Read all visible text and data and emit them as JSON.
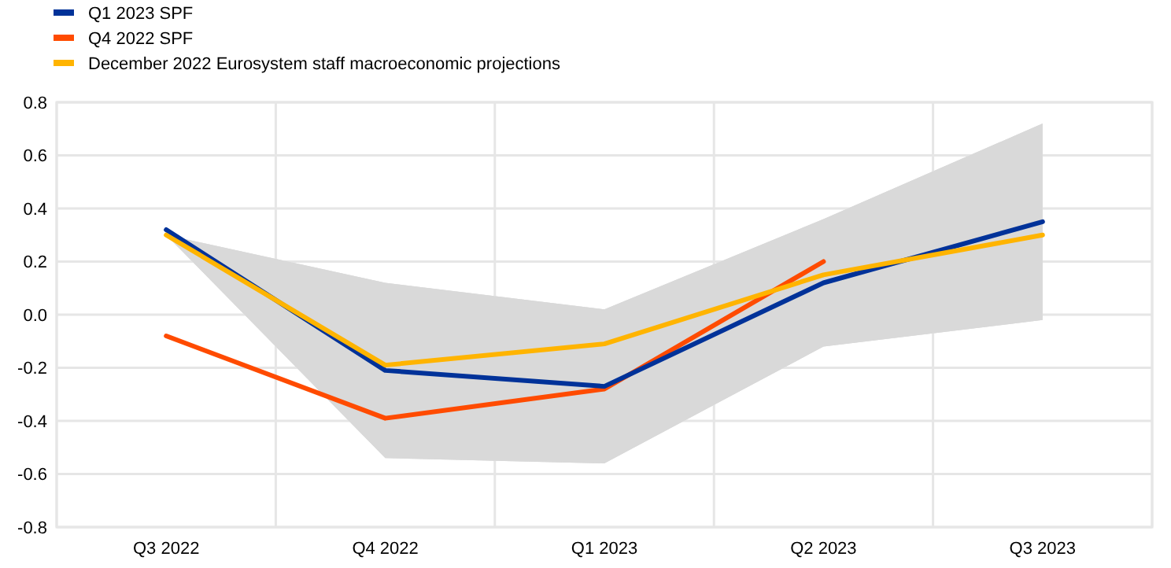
{
  "chart_data": {
    "type": "line",
    "categories": [
      "Q3 2022",
      "Q4 2022",
      "Q1 2023",
      "Q2 2023",
      "Q3 2023"
    ],
    "series": [
      {
        "name": "Q1 2023 SPF",
        "color": "#003299",
        "values": [
          0.32,
          -0.21,
          -0.27,
          0.12,
          0.35
        ]
      },
      {
        "name": "Q4 2022 SPF",
        "color": "#ff4b00",
        "values": [
          -0.08,
          -0.39,
          -0.28,
          0.2,
          null
        ]
      },
      {
        "name": "December 2022 Eurosystem staff macroeconomic projections",
        "color": "#ffb400",
        "values": [
          0.3,
          -0.19,
          -0.11,
          0.15,
          0.3
        ],
        "lower": [
          0.3,
          -0.54,
          -0.56,
          -0.12,
          -0.02
        ],
        "upper": [
          0.3,
          0.12,
          0.02,
          0.36,
          0.72
        ]
      }
    ],
    "ylim": [
      -0.8,
      0.8
    ],
    "yticks": [
      {
        "value": -0.8,
        "label": "-0.8"
      },
      {
        "value": -0.6,
        "label": "-0.6"
      },
      {
        "value": -0.4,
        "label": "-0.4"
      },
      {
        "value": -0.2,
        "label": "-0.2"
      },
      {
        "value": 0,
        "label": "0.0"
      },
      {
        "value": 0.2,
        "label": "0.2"
      },
      {
        "value": 0.4,
        "label": "0.4"
      },
      {
        "value": 0.6,
        "label": "0.6"
      },
      {
        "value": 0.8,
        "label": "0.8"
      }
    ],
    "grid": true,
    "legend": "top left",
    "line_style": "solid",
    "marker": "none"
  }
}
